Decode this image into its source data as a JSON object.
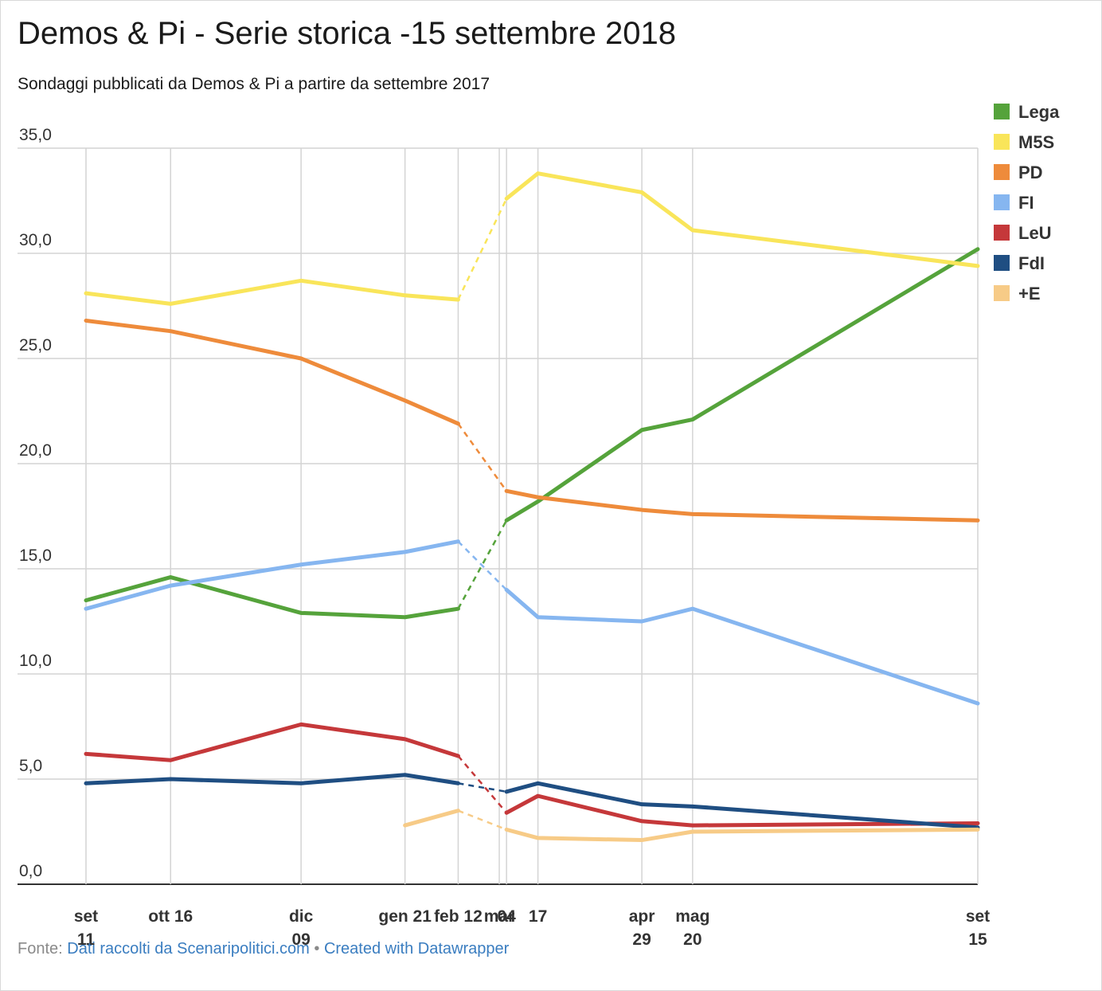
{
  "header": {
    "title": "Demos & Pi - Serie storica -15 settembre 2018",
    "subtitle": "Sondaggi pubblicati da Demos & Pi a partire da settembre 2017"
  },
  "footer": {
    "prefix": "Fonte: ",
    "source_link": "Dati raccolti da Scenaripolitici.com",
    "separator": " • ",
    "credit_link": "Created with Datawrapper"
  },
  "chart_data": {
    "type": "line",
    "title": "Demos & Pi - Serie storica -15 settembre 2018",
    "subtitle": "Sondaggi pubblicati da Demos & Pi a partire da settembre 2017",
    "ylim": [
      0,
      35
    ],
    "y_ticks": [
      "0,0",
      "5,0",
      "10,0",
      "15,0",
      "20,0",
      "25,0",
      "30,0",
      "35,0"
    ],
    "grid": true,
    "legend_position": "top-right",
    "x": [
      "2017-09-11",
      "2017-10-16",
      "2017-12-09",
      "2018-01-21",
      "2018-02-12",
      "2018-03-01",
      "2018-03-04",
      "2018-03-17",
      "2018-04-29",
      "2018-05-20",
      "2018-09-15"
    ],
    "x_tick_labels": [
      {
        "line1": "set",
        "line2": "11"
      },
      {
        "line1": "ott 16",
        "line2": ""
      },
      {
        "line1": "dic",
        "line2": "09"
      },
      {
        "line1": "gen 21",
        "line2": ""
      },
      {
        "line1": "feb 12",
        "line2": ""
      },
      {
        "line1": "mar",
        "line2": ""
      },
      {
        "line1": "04",
        "line2": ""
      },
      {
        "line1": "17",
        "line2": ""
      },
      {
        "line1": "apr",
        "line2": "29"
      },
      {
        "line1": "mag",
        "line2": "20"
      },
      {
        "line1": "set",
        "line2": "15"
      }
    ],
    "series": [
      {
        "name": "Lega",
        "color": "#55a33b",
        "values": [
          13.5,
          14.6,
          12.9,
          12.7,
          13.1,
          null,
          17.3,
          18.2,
          21.6,
          22.1,
          30.2
        ]
      },
      {
        "name": "M5S",
        "color": "#f9e55a",
        "values": [
          28.1,
          27.6,
          28.7,
          28.0,
          27.8,
          null,
          32.6,
          33.8,
          32.9,
          31.1,
          29.4
        ]
      },
      {
        "name": "PD",
        "color": "#ee8b3b",
        "values": [
          26.8,
          26.3,
          25.0,
          23.0,
          21.9,
          null,
          18.7,
          18.4,
          17.8,
          17.6,
          17.3
        ]
      },
      {
        "name": "FI",
        "color": "#86b6f0",
        "values": [
          13.1,
          14.2,
          15.2,
          15.8,
          16.3,
          null,
          14.0,
          12.7,
          12.5,
          13.1,
          8.6
        ]
      },
      {
        "name": "LeU",
        "color": "#c5383a",
        "values": [
          6.2,
          5.9,
          7.6,
          6.9,
          6.1,
          null,
          3.4,
          4.2,
          3.0,
          2.8,
          2.9
        ]
      },
      {
        "name": "FdI",
        "color": "#1f4e82",
        "values": [
          4.8,
          5.0,
          4.8,
          5.2,
          4.8,
          null,
          4.4,
          4.8,
          3.8,
          3.7,
          2.7
        ]
      },
      {
        "name": "+E",
        "color": "#f7cb87",
        "values": [
          null,
          null,
          null,
          2.8,
          3.5,
          null,
          2.6,
          2.2,
          2.1,
          2.5,
          2.6
        ]
      }
    ]
  }
}
